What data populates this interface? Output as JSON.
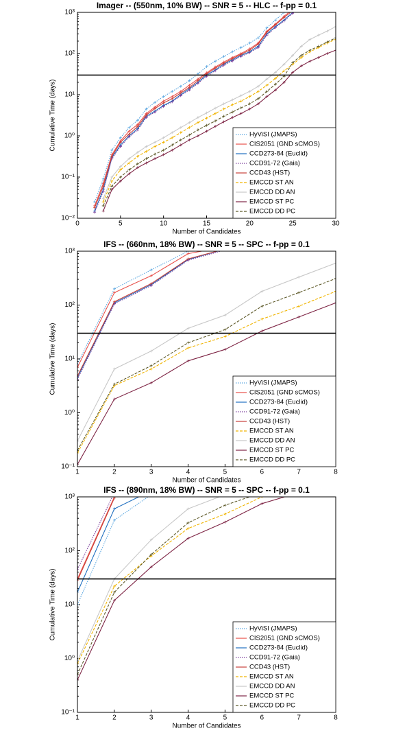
{
  "chart_data": [
    {
      "type": "line",
      "title": "Imager -- (550nm, 10% BW) -- SNR = 5 -- HLC -- f-pp = 0.1",
      "x_label": "Number of Candidates",
      "y_label": "Cumulative Time  (days)",
      "x": [
        2,
        3,
        4,
        5,
        6,
        7,
        8,
        9,
        10,
        11,
        12,
        13,
        14,
        15,
        16,
        17,
        18,
        19,
        20,
        21,
        22,
        23,
        24,
        25,
        26,
        27,
        28,
        29,
        30
      ],
      "xlim": [
        0,
        30
      ],
      "xticks": [
        0,
        5,
        10,
        15,
        20,
        25,
        30
      ],
      "log_y": true,
      "ylim": [
        0.01,
        1000
      ],
      "yticks": [
        {
          "value": 0.01,
          "label": "10⁻²"
        },
        {
          "value": 0.1,
          "label": "10⁻¹"
        },
        {
          "value": 1,
          "label": "10⁰"
        },
        {
          "value": 10,
          "label": "10¹"
        },
        {
          "value": 100,
          "label": "10²"
        },
        {
          "value": 1000,
          "label": "10³"
        }
      ],
      "threshold": 30,
      "legend": "lower right",
      "series": [
        {
          "name": "HyViSI (JMAPS)",
          "color": "#5aa6e0",
          "dash": "dotted",
          "values": [
            0.025,
            0.09,
            0.45,
            0.9,
            1.6,
            2.4,
            4.5,
            6.5,
            9,
            12,
            16,
            22,
            32,
            48,
            65,
            85,
            110,
            140,
            180,
            240,
            420,
            650,
            1000,
            1400,
            null,
            null,
            null,
            null,
            null
          ]
        },
        {
          "name": "CIS2051 (GND sCMOS)",
          "color": "#e8504a",
          "dash": "solid",
          "values": [
            0.02,
            0.07,
            0.35,
            0.75,
            1.3,
            1.9,
            3.5,
            5,
            7,
            9,
            12,
            17,
            24,
            34,
            47,
            62,
            80,
            100,
            130,
            180,
            350,
            520,
            800,
            1200,
            null,
            null,
            null,
            null,
            null
          ]
        },
        {
          "name": "CCD273-84 (Euclid)",
          "color": "#1f6fc0",
          "dash": "solid",
          "values": [
            0.015,
            0.05,
            0.3,
            0.6,
            1,
            1.5,
            3,
            4,
            5.5,
            7,
            10,
            14,
            20,
            30,
            40,
            55,
            70,
            90,
            110,
            150,
            300,
            450,
            650,
            1000,
            1400,
            null,
            null,
            null,
            null
          ]
        },
        {
          "name": "CCD91-72 (Gaia)",
          "color": "#7a3c9a",
          "dash": "dotted",
          "values": [
            0.014,
            0.045,
            0.28,
            0.55,
            0.95,
            1.4,
            2.8,
            3.8,
            5.2,
            6.7,
            9.5,
            13,
            19,
            28,
            38,
            52,
            66,
            85,
            105,
            140,
            280,
            430,
            620,
            950,
            1350,
            null,
            null,
            null,
            null
          ]
        },
        {
          "name": "CCD43 (HST)",
          "color": "#c8403a",
          "dash": "solid",
          "values": [
            0.018,
            0.06,
            0.32,
            0.7,
            1.1,
            1.7,
            3.2,
            4.6,
            6.3,
            8,
            11,
            15,
            22,
            32,
            44,
            58,
            75,
            95,
            120,
            170,
            330,
            500,
            750,
            1100,
            null,
            null,
            null,
            null,
            null
          ]
        },
        {
          "name": "EMCCD ST AN",
          "color": "#f0b400",
          "dash": "dashed",
          "values": [
            null,
            0.025,
            0.08,
            0.15,
            0.22,
            0.32,
            0.42,
            0.55,
            0.7,
            0.9,
            1.2,
            1.6,
            2.1,
            2.7,
            3.5,
            4.5,
            5.7,
            7,
            9,
            12,
            17,
            25,
            38,
            55,
            80,
            110,
            140,
            180,
            220
          ]
        },
        {
          "name": "EMCCD DD AN",
          "color": "#c8c8c8",
          "dash": "solid",
          "values": [
            null,
            0.03,
            0.1,
            0.18,
            0.28,
            0.4,
            0.55,
            0.7,
            0.9,
            1.2,
            1.6,
            2.1,
            2.8,
            3.6,
            4.7,
            6,
            7.5,
            9.5,
            12,
            16,
            24,
            35,
            55,
            90,
            150,
            220,
            280,
            350,
            450
          ]
        },
        {
          "name": "EMCCD ST PC",
          "color": "#7e2545",
          "dash": "solid",
          "values": [
            null,
            0.015,
            0.05,
            0.08,
            0.12,
            0.17,
            0.22,
            0.28,
            0.35,
            0.45,
            0.6,
            0.8,
            1,
            1.3,
            1.7,
            2.2,
            2.8,
            3.5,
            4.5,
            6,
            9,
            13,
            20,
            35,
            50,
            65,
            80,
            100,
            120
          ]
        },
        {
          "name": "EMCCD DD PC",
          "color": "#5e5a2a",
          "dash": "dashed",
          "values": [
            null,
            0.02,
            0.06,
            0.1,
            0.15,
            0.21,
            0.28,
            0.36,
            0.45,
            0.6,
            0.8,
            1.05,
            1.4,
            1.8,
            2.3,
            3,
            3.8,
            4.8,
            6,
            8,
            12,
            18,
            28,
            60,
            90,
            120,
            150,
            190,
            240
          ]
        }
      ]
    },
    {
      "type": "line",
      "title": "IFS -- (660nm, 18% BW) -- SNR = 5 -- SPC -- f-pp = 0.1",
      "x_label": "Number of Candidates",
      "y_label": "Cumulative Time  (days)",
      "x": [
        1,
        2,
        3,
        4,
        5,
        6,
        7,
        8
      ],
      "xlim": [
        1,
        8
      ],
      "xticks": [
        1,
        2,
        3,
        4,
        5,
        6,
        7,
        8
      ],
      "log_y": true,
      "ylim": [
        0.1,
        1000
      ],
      "yticks": [
        {
          "value": 0.1,
          "label": "10⁻¹"
        },
        {
          "value": 1,
          "label": "10⁰"
        },
        {
          "value": 10,
          "label": "10¹"
        },
        {
          "value": 100,
          "label": "10²"
        },
        {
          "value": 1000,
          "label": "10³"
        }
      ],
      "threshold": 30,
      "legend": "lower right",
      "series": [
        {
          "name": "HyViSI (JMAPS)",
          "color": "#5aa6e0",
          "dash": "dotted",
          "values": [
            8,
            200,
            450,
            1000,
            null,
            null,
            null,
            null
          ]
        },
        {
          "name": "CIS2051 (GND sCMOS)",
          "color": "#e8504a",
          "dash": "solid",
          "values": [
            7,
            170,
            350,
            900,
            1200,
            null,
            null,
            null
          ]
        },
        {
          "name": "CCD273-84 (Euclid)",
          "color": "#1f6fc0",
          "dash": "solid",
          "values": [
            4.5,
            110,
            240,
            700,
            1100,
            null,
            null,
            null
          ]
        },
        {
          "name": "CCD91-72 (Gaia)",
          "color": "#7a3c9a",
          "dash": "dotted",
          "values": [
            4.2,
            105,
            230,
            680,
            1050,
            null,
            null,
            null
          ]
        },
        {
          "name": "CCD43 (HST)",
          "color": "#c8403a",
          "dash": "solid",
          "values": [
            4.8,
            115,
            250,
            720,
            1100,
            null,
            null,
            null
          ]
        },
        {
          "name": "EMCCD ST AN",
          "color": "#f0b400",
          "dash": "dashed",
          "values": [
            0.18,
            3.2,
            6.5,
            16,
            26,
            55,
            95,
            180
          ]
        },
        {
          "name": "EMCCD DD AN",
          "color": "#c8c8c8",
          "dash": "solid",
          "values": [
            0.3,
            6.5,
            14,
            37,
            65,
            180,
            330,
            600
          ]
        },
        {
          "name": "EMCCD ST PC",
          "color": "#7e2545",
          "dash": "solid",
          "values": [
            0.11,
            1.8,
            3.6,
            9.2,
            15,
            33,
            60,
            110
          ]
        },
        {
          "name": "EMCCD DD PC",
          "color": "#5e5a2a",
          "dash": "dashed",
          "values": [
            0.2,
            3.4,
            7.5,
            20,
            35,
            95,
            170,
            310
          ]
        }
      ]
    },
    {
      "type": "line",
      "title": "IFS -- (890nm, 18% BW) -- SNR = 5 -- SPC -- f-pp = 0.1",
      "x_label": "Number of Candidates",
      "y_label": "Cumulative Time  (days)",
      "x": [
        1,
        2,
        3,
        4,
        5,
        6,
        7,
        8
      ],
      "xlim": [
        1,
        8
      ],
      "xticks": [
        1,
        2,
        3,
        4,
        5,
        6,
        7,
        8
      ],
      "log_y": true,
      "ylim": [
        0.1,
        1000
      ],
      "yticks": [
        {
          "value": 0.1,
          "label": "10⁻¹"
        },
        {
          "value": 1,
          "label": "10⁰"
        },
        {
          "value": 10,
          "label": "10¹"
        },
        {
          "value": 100,
          "label": "10²"
        },
        {
          "value": 1000,
          "label": "10³"
        }
      ],
      "threshold": 30,
      "legend": "lower right",
      "series": [
        {
          "name": "HyViSI (JMAPS)",
          "color": "#5aa6e0",
          "dash": "dotted",
          "values": [
            10,
            370,
            1100,
            null,
            null,
            null,
            null,
            null
          ]
        },
        {
          "name": "CIS2051 (GND sCMOS)",
          "color": "#e8504a",
          "dash": "solid",
          "values": [
            30,
            1000,
            null,
            null,
            null,
            null,
            null,
            null
          ]
        },
        {
          "name": "CCD273-84 (Euclid)",
          "color": "#1f6fc0",
          "dash": "solid",
          "values": [
            17,
            600,
            1300,
            null,
            null,
            null,
            null,
            null
          ]
        },
        {
          "name": "CCD91-72 (Gaia)",
          "color": "#7a3c9a",
          "dash": "dotted",
          "values": [
            45,
            1200,
            null,
            null,
            null,
            null,
            null,
            null
          ]
        },
        {
          "name": "CCD43 (HST)",
          "color": "#c8403a",
          "dash": "solid",
          "values": [
            28,
            950,
            null,
            null,
            null,
            null,
            null,
            null
          ]
        },
        {
          "name": "EMCCD ST AN",
          "color": "#f0b400",
          "dash": "dashed",
          "values": [
            0.8,
            22,
            80,
            260,
            480,
            1000,
            null,
            null
          ]
        },
        {
          "name": "EMCCD DD AN",
          "color": "#c8c8c8",
          "dash": "solid",
          "values": [
            0.9,
            30,
            160,
            600,
            1100,
            null,
            null,
            null
          ]
        },
        {
          "name": "EMCCD ST PC",
          "color": "#7e2545",
          "dash": "solid",
          "values": [
            0.4,
            12,
            50,
            170,
            340,
            750,
            1200,
            null
          ]
        },
        {
          "name": "EMCCD DD PC",
          "color": "#5e5a2a",
          "dash": "dashed",
          "values": [
            0.5,
            17,
            85,
            330,
            700,
            1200,
            null,
            null
          ]
        }
      ]
    }
  ]
}
